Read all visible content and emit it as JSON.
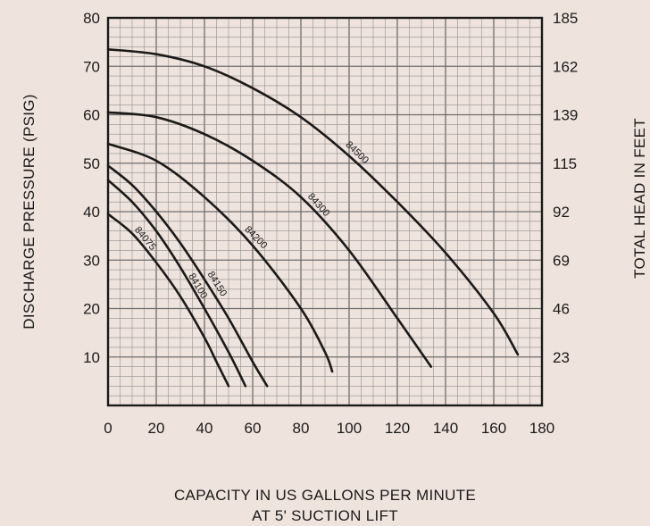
{
  "chart_data": {
    "type": "line",
    "xlabel": [
      "CAPACITY IN US GALLONS PER MINUTE",
      "AT 5' SUCTION LIFT"
    ],
    "ylabel": "DISCHARGE PRESSURE (PSIG)",
    "y2label": "TOTAL HEAD IN FEET",
    "xlim": [
      0,
      180
    ],
    "ylim": [
      0,
      80
    ],
    "x_ticks": [
      0,
      20,
      40,
      60,
      80,
      100,
      120,
      140,
      160,
      180
    ],
    "y_ticks": [
      10,
      20,
      30,
      40,
      50,
      60,
      70,
      80
    ],
    "y2_ticks": [
      {
        "at": 10,
        "label": "23"
      },
      {
        "at": 20,
        "label": "46"
      },
      {
        "at": 30,
        "label": "69"
      },
      {
        "at": 40,
        "label": "92"
      },
      {
        "at": 50,
        "label": "115"
      },
      {
        "at": 60,
        "label": "139"
      },
      {
        "at": 70,
        "label": "162"
      },
      {
        "at": 80,
        "label": "185"
      }
    ],
    "grid": true,
    "series": [
      {
        "name": "84075",
        "x": [
          0,
          10,
          20,
          30,
          40,
          45,
          50
        ],
        "y": [
          39.5,
          35.5,
          29.5,
          22.5,
          14,
          9,
          4
        ]
      },
      {
        "name": "84100",
        "x": [
          0,
          10,
          20,
          30,
          40,
          50,
          57
        ],
        "y": [
          46.5,
          42,
          36,
          28.5,
          20,
          11,
          4
        ]
      },
      {
        "name": "84150",
        "x": [
          0,
          10,
          20,
          30,
          40,
          50,
          60,
          66
        ],
        "y": [
          49.5,
          45.5,
          40,
          33.5,
          26,
          18,
          9,
          4
        ]
      },
      {
        "name": "84200",
        "x": [
          0,
          20,
          40,
          60,
          80,
          90,
          93
        ],
        "y": [
          54,
          50.5,
          43,
          33,
          20,
          11,
          7
        ]
      },
      {
        "name": "84300",
        "x": [
          0,
          20,
          40,
          60,
          80,
          100,
          120,
          134
        ],
        "y": [
          60.5,
          59.5,
          56,
          50.5,
          43,
          32,
          18,
          8
        ]
      },
      {
        "name": "84500",
        "x": [
          0,
          20,
          40,
          60,
          80,
          100,
          120,
          140,
          160,
          170
        ],
        "y": [
          73.5,
          72.5,
          70,
          65.5,
          59.5,
          51.5,
          42,
          31.5,
          19,
          10.5
        ]
      }
    ]
  }
}
